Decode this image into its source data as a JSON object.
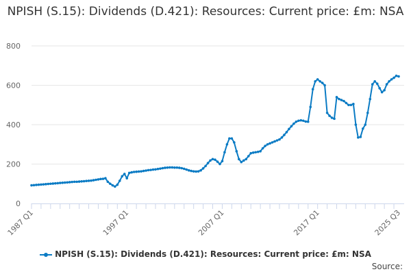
{
  "chart_data": {
    "type": "line",
    "title": "NPISH (S.15): Dividends (D.421): Resources: Current price: £m: NSA",
    "xlabel": "",
    "ylabel": "",
    "start_period": "1987 Q1",
    "frequency": "quarterly",
    "x_tick_labels": [
      "1987 Q1",
      "1997 Q1",
      "2007 Q1",
      "2017 Q1",
      "2025 Q3"
    ],
    "x_tick_indices": [
      0,
      40,
      80,
      120,
      154
    ],
    "y_ticks": [
      0,
      200,
      400,
      600,
      800
    ],
    "ylim": [
      0,
      800
    ],
    "grid": true,
    "legend_position": "bottom",
    "color": "#0a7bc4",
    "series": [
      {
        "name": "NPISH (S.15): Dividends (D.421): Resources: Current price: £m: NSA",
        "values": [
          92,
          93,
          94,
          95,
          96,
          97,
          98,
          99,
          100,
          101,
          102,
          103,
          104,
          105,
          106,
          107,
          108,
          109,
          110,
          110,
          111,
          112,
          113,
          114,
          115,
          116,
          118,
          120,
          122,
          124,
          125,
          128,
          110,
          100,
          92,
          86,
          95,
          115,
          138,
          150,
          128,
          155,
          158,
          160,
          161,
          162,
          163,
          165,
          167,
          169,
          170,
          172,
          173,
          175,
          177,
          179,
          181,
          182,
          183,
          183,
          182,
          182,
          181,
          179,
          176,
          172,
          168,
          165,
          163,
          162,
          163,
          168,
          178,
          190,
          205,
          218,
          225,
          222,
          212,
          200,
          215,
          260,
          300,
          330,
          330,
          310,
          265,
          225,
          210,
          218,
          225,
          240,
          255,
          258,
          260,
          262,
          265,
          280,
          292,
          300,
          305,
          310,
          315,
          320,
          325,
          335,
          348,
          362,
          378,
          392,
          405,
          415,
          420,
          422,
          420,
          416,
          415,
          490,
          580,
          620,
          630,
          620,
          612,
          600,
          460,
          445,
          435,
          430,
          540,
          530,
          525,
          520,
          510,
          500,
          500,
          505,
          400,
          335,
          338,
          380,
          400,
          460,
          530,
          605,
          620,
          608,
          585,
          565,
          575,
          605,
          620,
          630,
          638,
          648,
          645
        ]
      }
    ]
  },
  "source_label": "Source:"
}
